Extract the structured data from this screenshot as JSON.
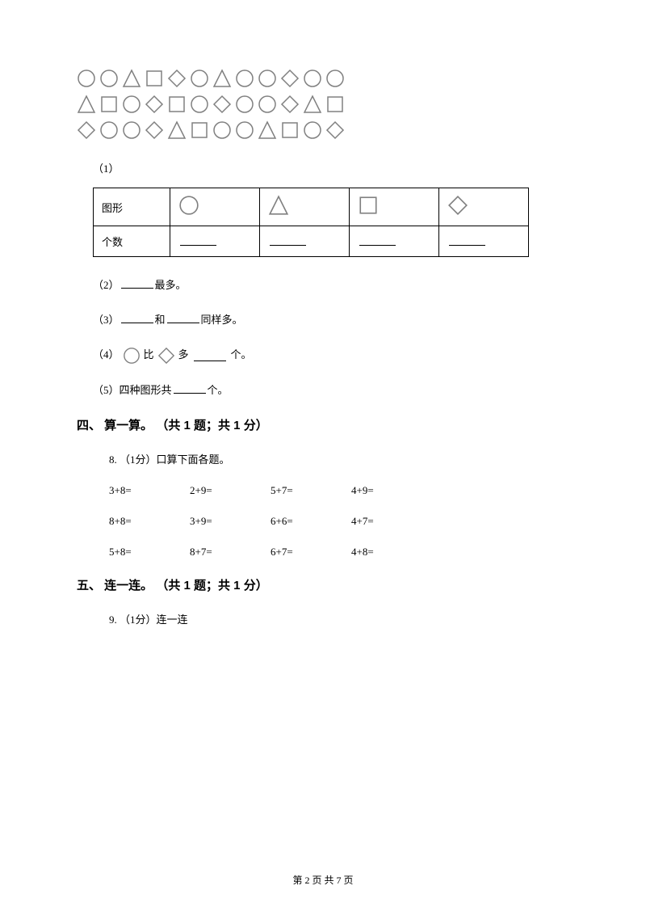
{
  "colors": {
    "shape_stroke": "#808080",
    "text": "#000000",
    "border": "#000000",
    "background": "#ffffff"
  },
  "shape_rows": [
    [
      "circle",
      "circle",
      "triangle",
      "square",
      "diamond",
      "circle",
      "triangle",
      "circle",
      "circle",
      "diamond",
      "circle",
      "circle"
    ],
    [
      "triangle",
      "square",
      "circle",
      "diamond",
      "square",
      "circle",
      "diamond",
      "circle",
      "circle",
      "diamond",
      "triangle",
      "square"
    ],
    [
      "diamond",
      "circle",
      "circle",
      "diamond",
      "triangle",
      "square",
      "circle",
      "circle",
      "triangle",
      "square",
      "circle",
      "diamond"
    ]
  ],
  "q1_label": "（1）",
  "table": {
    "row1_label": "图形",
    "row2_label": "个数"
  },
  "q2": {
    "prefix": "（2）",
    "suffix": "最多。"
  },
  "q3": {
    "prefix": "（3）",
    "mid": "和",
    "suffix": "同样多。"
  },
  "q4": {
    "prefix": "（4）",
    "mid1": "比",
    "mid2": "多",
    "suffix": "个。"
  },
  "q5": {
    "prefix": "（5）四种图形共",
    "suffix": "个。"
  },
  "section4": {
    "title": "四、 算一算。 （共 1 题；共 1 分）",
    "q8_intro": "8. （1分）口算下面各题。",
    "rows": [
      [
        "3+8=",
        "2+9=",
        "5+7=",
        "4+9="
      ],
      [
        "8+8=",
        "3+9=",
        "6+6=",
        "4+7="
      ],
      [
        "5+8=",
        "8+7=",
        "6+7=",
        "4+8="
      ]
    ]
  },
  "section5": {
    "title": "五、 连一连。 （共 1 题；共 1 分）",
    "q9_intro": "9. （1分）连一连"
  },
  "footer": "第 2 页 共 7 页"
}
